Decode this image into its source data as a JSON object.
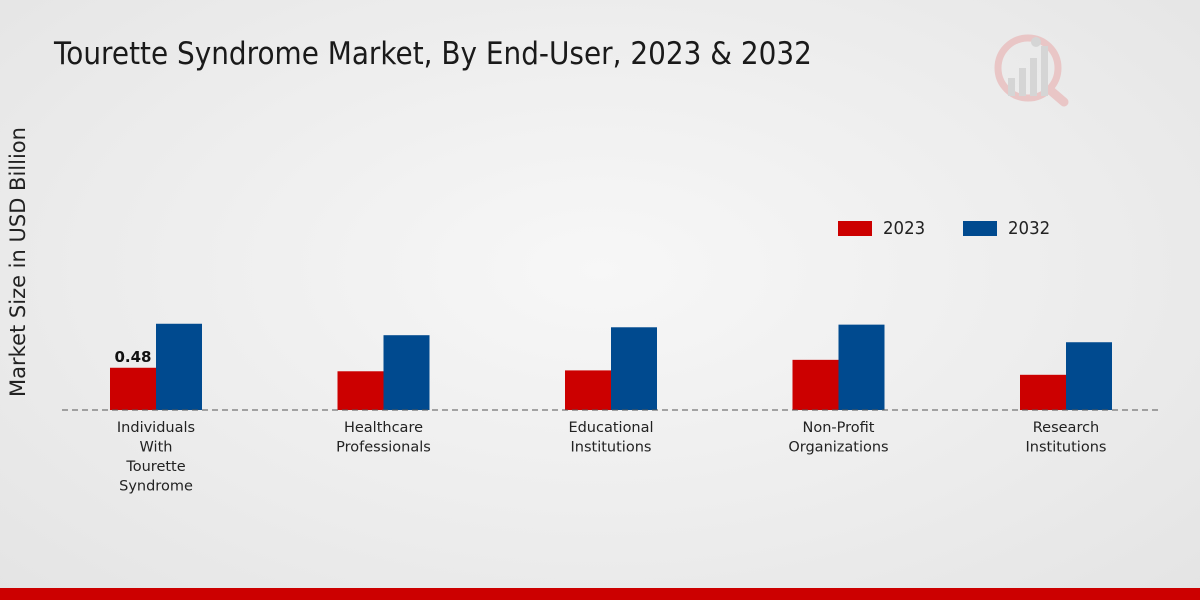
{
  "title": "Tourette Syndrome Market, By End-User, 2023 & 2032",
  "colors": {
    "series_2023": "#cc0000",
    "series_2032": "#004a8f",
    "brand_bar": "#cc0000"
  },
  "chart_data": {
    "type": "bar",
    "title": "Tourette Syndrome Market, By End-User, 2023 & 2032",
    "xlabel": "",
    "ylabel": "Market Size in USD Billion",
    "ylim": [
      0,
      1.3
    ],
    "categories": [
      [
        "Individuals",
        "With",
        "Tourette",
        "Syndrome"
      ],
      [
        "Healthcare",
        "Professionals"
      ],
      [
        "Educational",
        "Institutions"
      ],
      [
        "Non-Profit",
        "Organizations"
      ],
      [
        "Research",
        "Institutions"
      ]
    ],
    "series": [
      {
        "name": "2023",
        "values": [
          0.48,
          0.44,
          0.45,
          0.57,
          0.4
        ]
      },
      {
        "name": "2032",
        "values": [
          0.98,
          0.85,
          0.94,
          0.97,
          0.77
        ]
      }
    ],
    "data_labels": [
      {
        "series": 0,
        "index": 0,
        "text": "0.48"
      }
    ],
    "legend_position": "top-right"
  }
}
